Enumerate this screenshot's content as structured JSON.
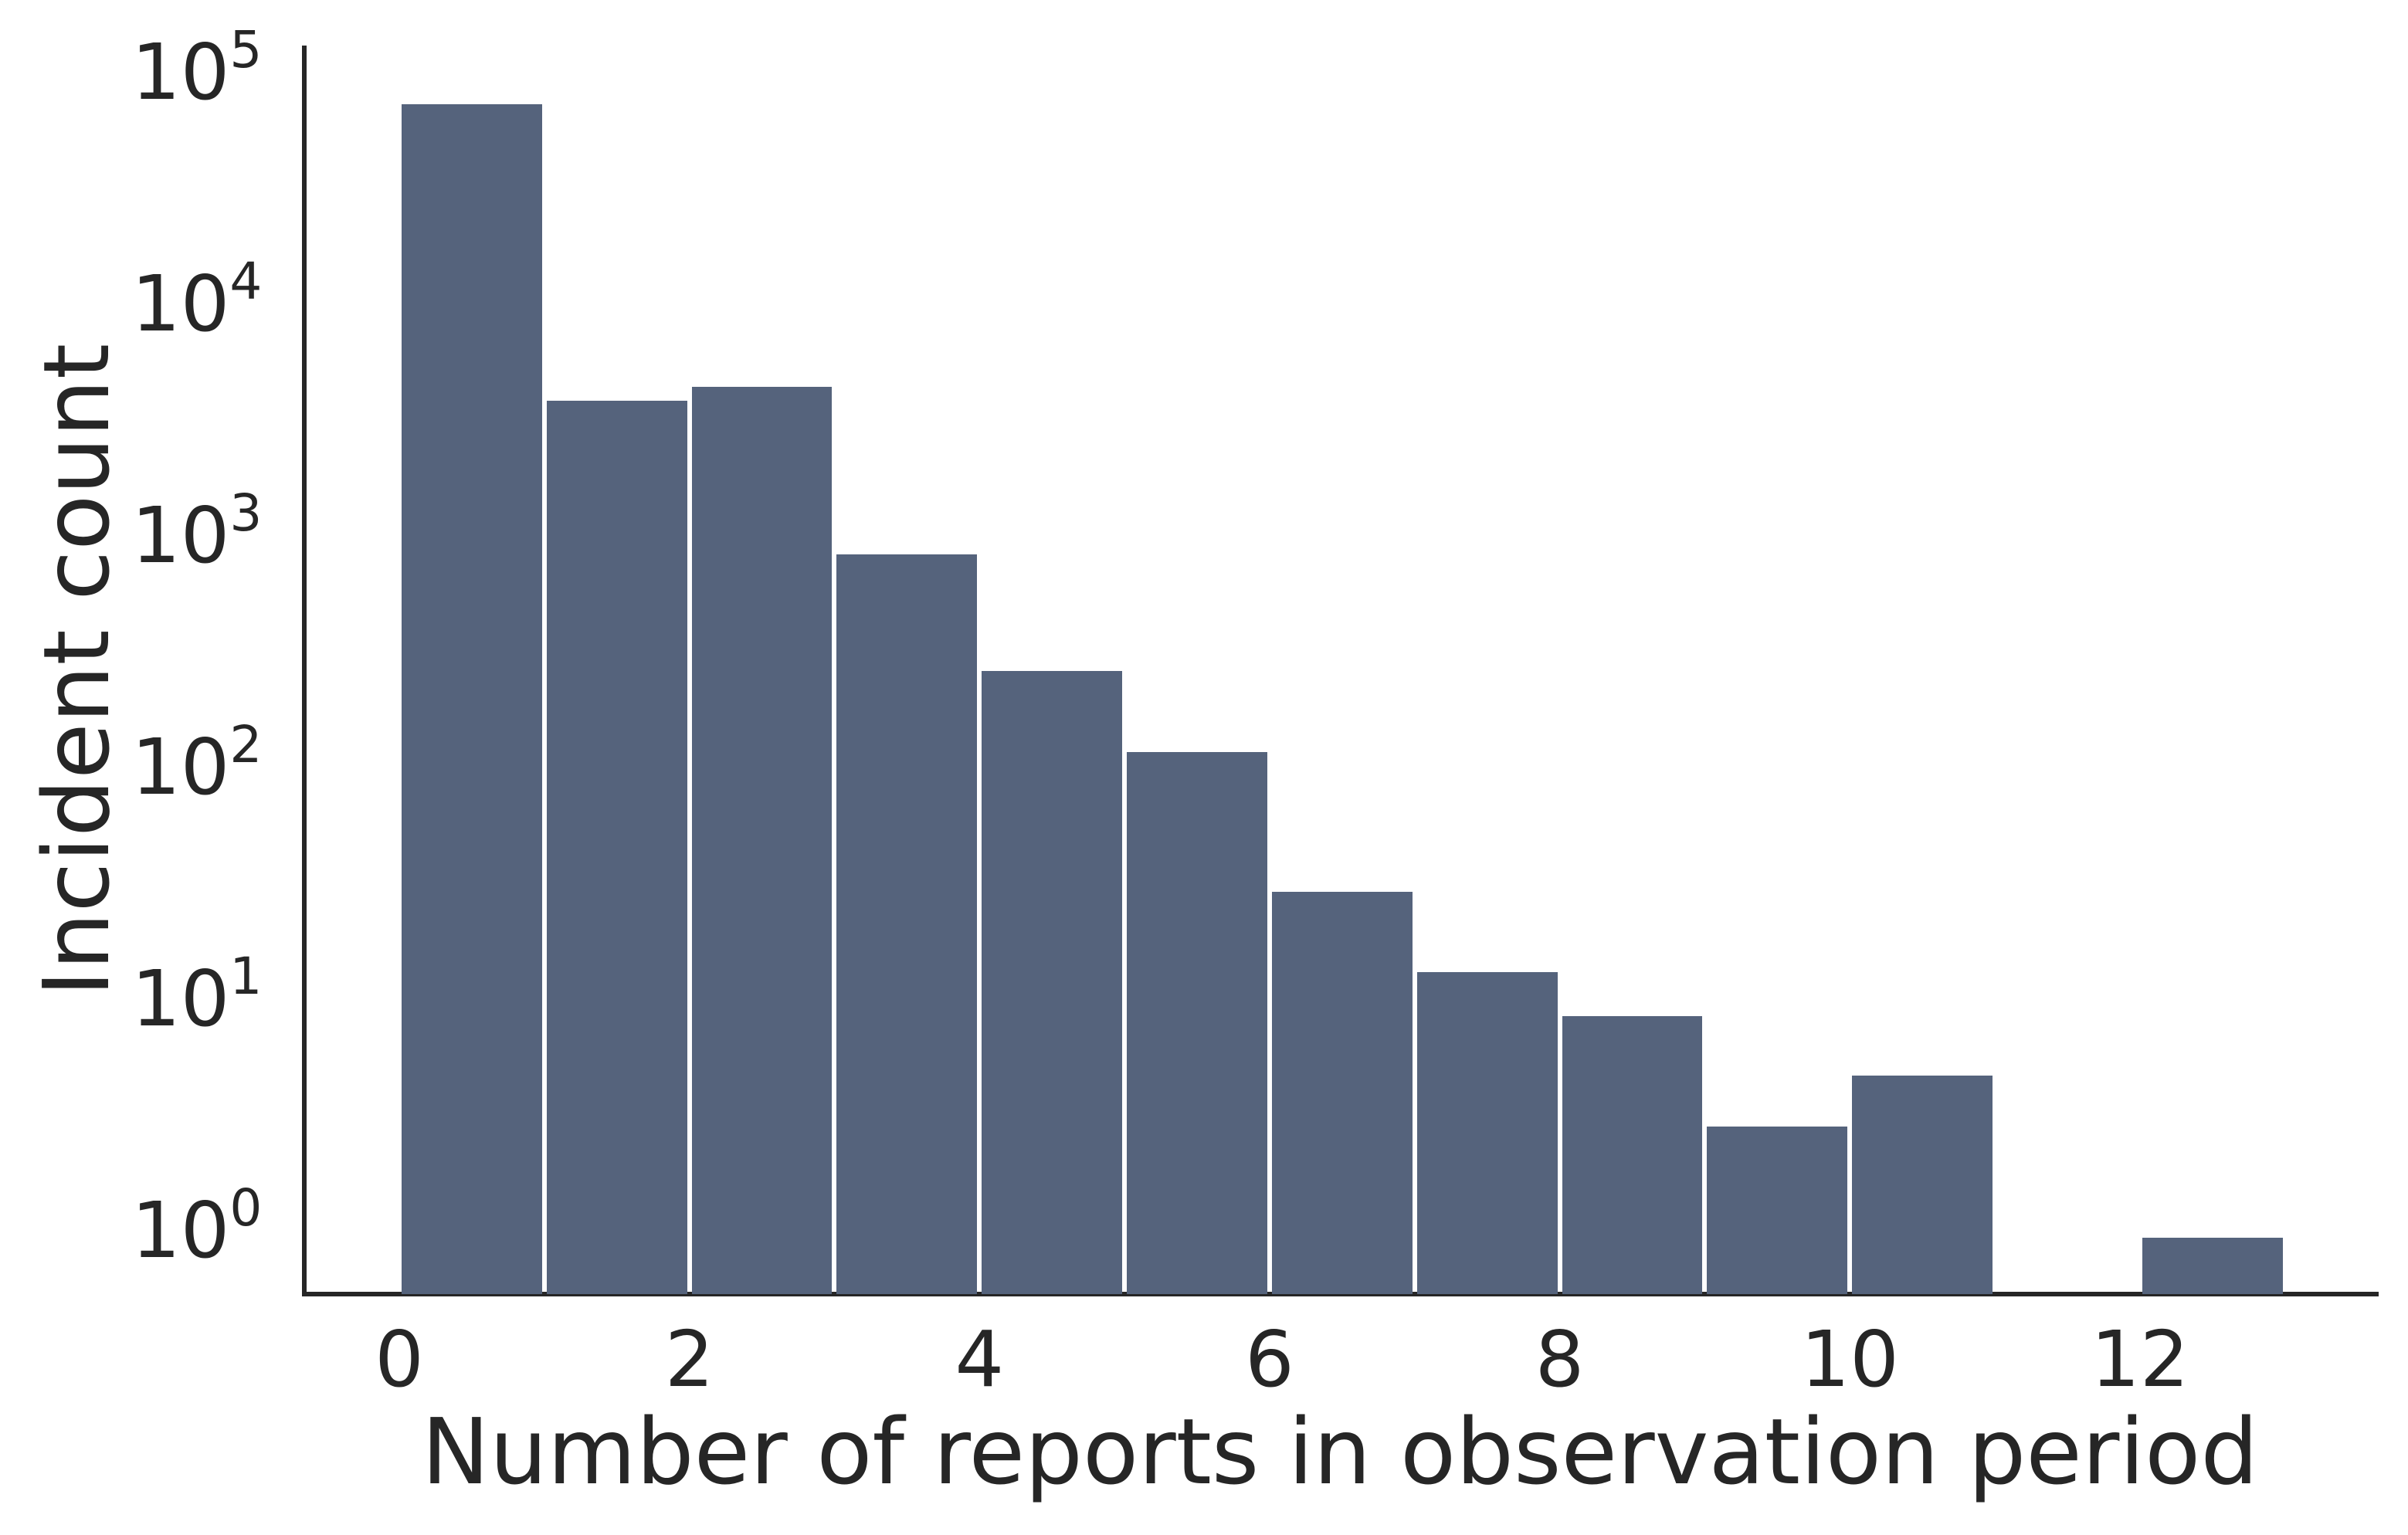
{
  "chart_data": {
    "type": "bar",
    "subtype": "histogram",
    "title": "",
    "xlabel": "Number of reports in observation period",
    "ylabel": "Incident count",
    "yscale": "log",
    "grid": false,
    "legend": null,
    "bin_edges": [
      0,
      1,
      2,
      3,
      4,
      5,
      6,
      7,
      8,
      9,
      10,
      11,
      12,
      13
    ],
    "values": [
      78000,
      4100,
      4700,
      890,
      280,
      125,
      31,
      14,
      9,
      3,
      5,
      0,
      1
    ],
    "x_tick_values": [
      0,
      2,
      4,
      6,
      8,
      10,
      12
    ],
    "x_tick_labels": [
      "0",
      "2",
      "4",
      "6",
      "8",
      "10",
      "12"
    ],
    "y_tick_exponents": [
      0,
      1,
      2,
      3,
      4,
      5
    ],
    "y_tick_base": "10",
    "xlim": [
      -0.655,
      13.63
    ],
    "ylim": [
      0.569,
      140000
    ],
    "bar_color": "#55637c",
    "bar_gap_color": "#ffffff",
    "spine_color": "#262626",
    "text_color": "#262626",
    "background_color": "#ffffff"
  }
}
